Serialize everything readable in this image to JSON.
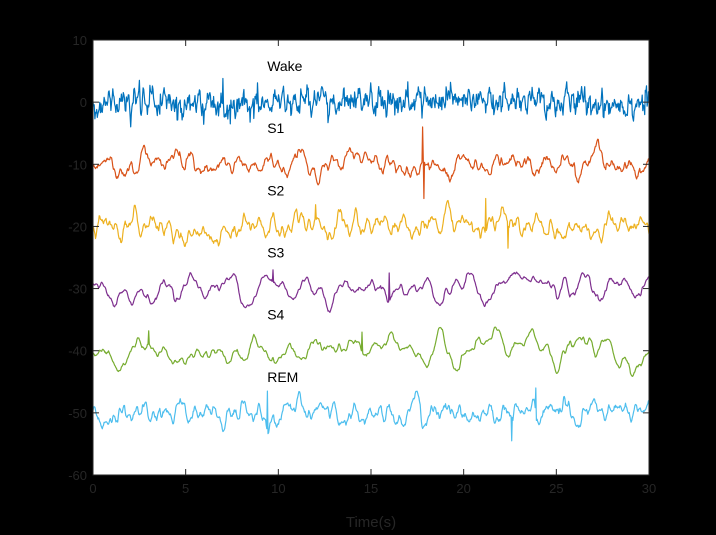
{
  "chart_data": {
    "type": "line",
    "title": "",
    "xlabel": "Time(s)",
    "ylabel": "",
    "xlim": [
      0,
      30
    ],
    "ylim": [
      -60,
      10
    ],
    "xticks": [
      0,
      5,
      10,
      15,
      20,
      25,
      30
    ],
    "yticks": [
      -60,
      -50,
      -40,
      -30,
      -20,
      -10,
      0,
      10
    ],
    "grid": false,
    "legend": "none",
    "series": [
      {
        "name": "Wake",
        "offset": 0,
        "color": "#0072BD",
        "amplitude": 1.6,
        "freq_class": "high",
        "events": [
          {
            "x": 7.0,
            "y": 3.8
          },
          {
            "x": 19.3,
            "y": 3.2
          },
          {
            "x": 7.4,
            "y": -3.5
          }
        ]
      },
      {
        "name": "S1",
        "offset": -10,
        "color": "#D95319",
        "amplitude": 1.5,
        "freq_class": "mid",
        "events": [
          {
            "x": 17.8,
            "y": -4
          },
          {
            "x": 17.85,
            "y": -15.5
          }
        ]
      },
      {
        "name": "S2",
        "offset": -20,
        "color": "#EDB120",
        "amplitude": 1.6,
        "freq_class": "mid",
        "events": [
          {
            "x": 21.2,
            "y": -15.5
          },
          {
            "x": 12.0,
            "y": -16.5
          },
          {
            "x": 22.4,
            "y": -23.5
          }
        ]
      },
      {
        "name": "S3",
        "offset": -30,
        "color": "#7E2F8E",
        "amplitude": 1.8,
        "freq_class": "low",
        "events": [
          {
            "x": 9.7,
            "y": -27
          },
          {
            "x": 16.0,
            "y": -27.5
          }
        ]
      },
      {
        "name": "S4",
        "offset": -40,
        "color": "#77AC30",
        "amplitude": 2.0,
        "freq_class": "low",
        "events": [
          {
            "x": 3.0,
            "y": -36.8
          },
          {
            "x": 14.5,
            "y": -37
          }
        ]
      },
      {
        "name": "REM",
        "offset": -50,
        "color": "#4DBEEE",
        "amplitude": 1.5,
        "freq_class": "mid",
        "events": [
          {
            "x": 22.6,
            "y": -54.5
          },
          {
            "x": 23.9,
            "y": -46
          },
          {
            "x": 9.4,
            "y": -46.5
          }
        ]
      }
    ]
  }
}
